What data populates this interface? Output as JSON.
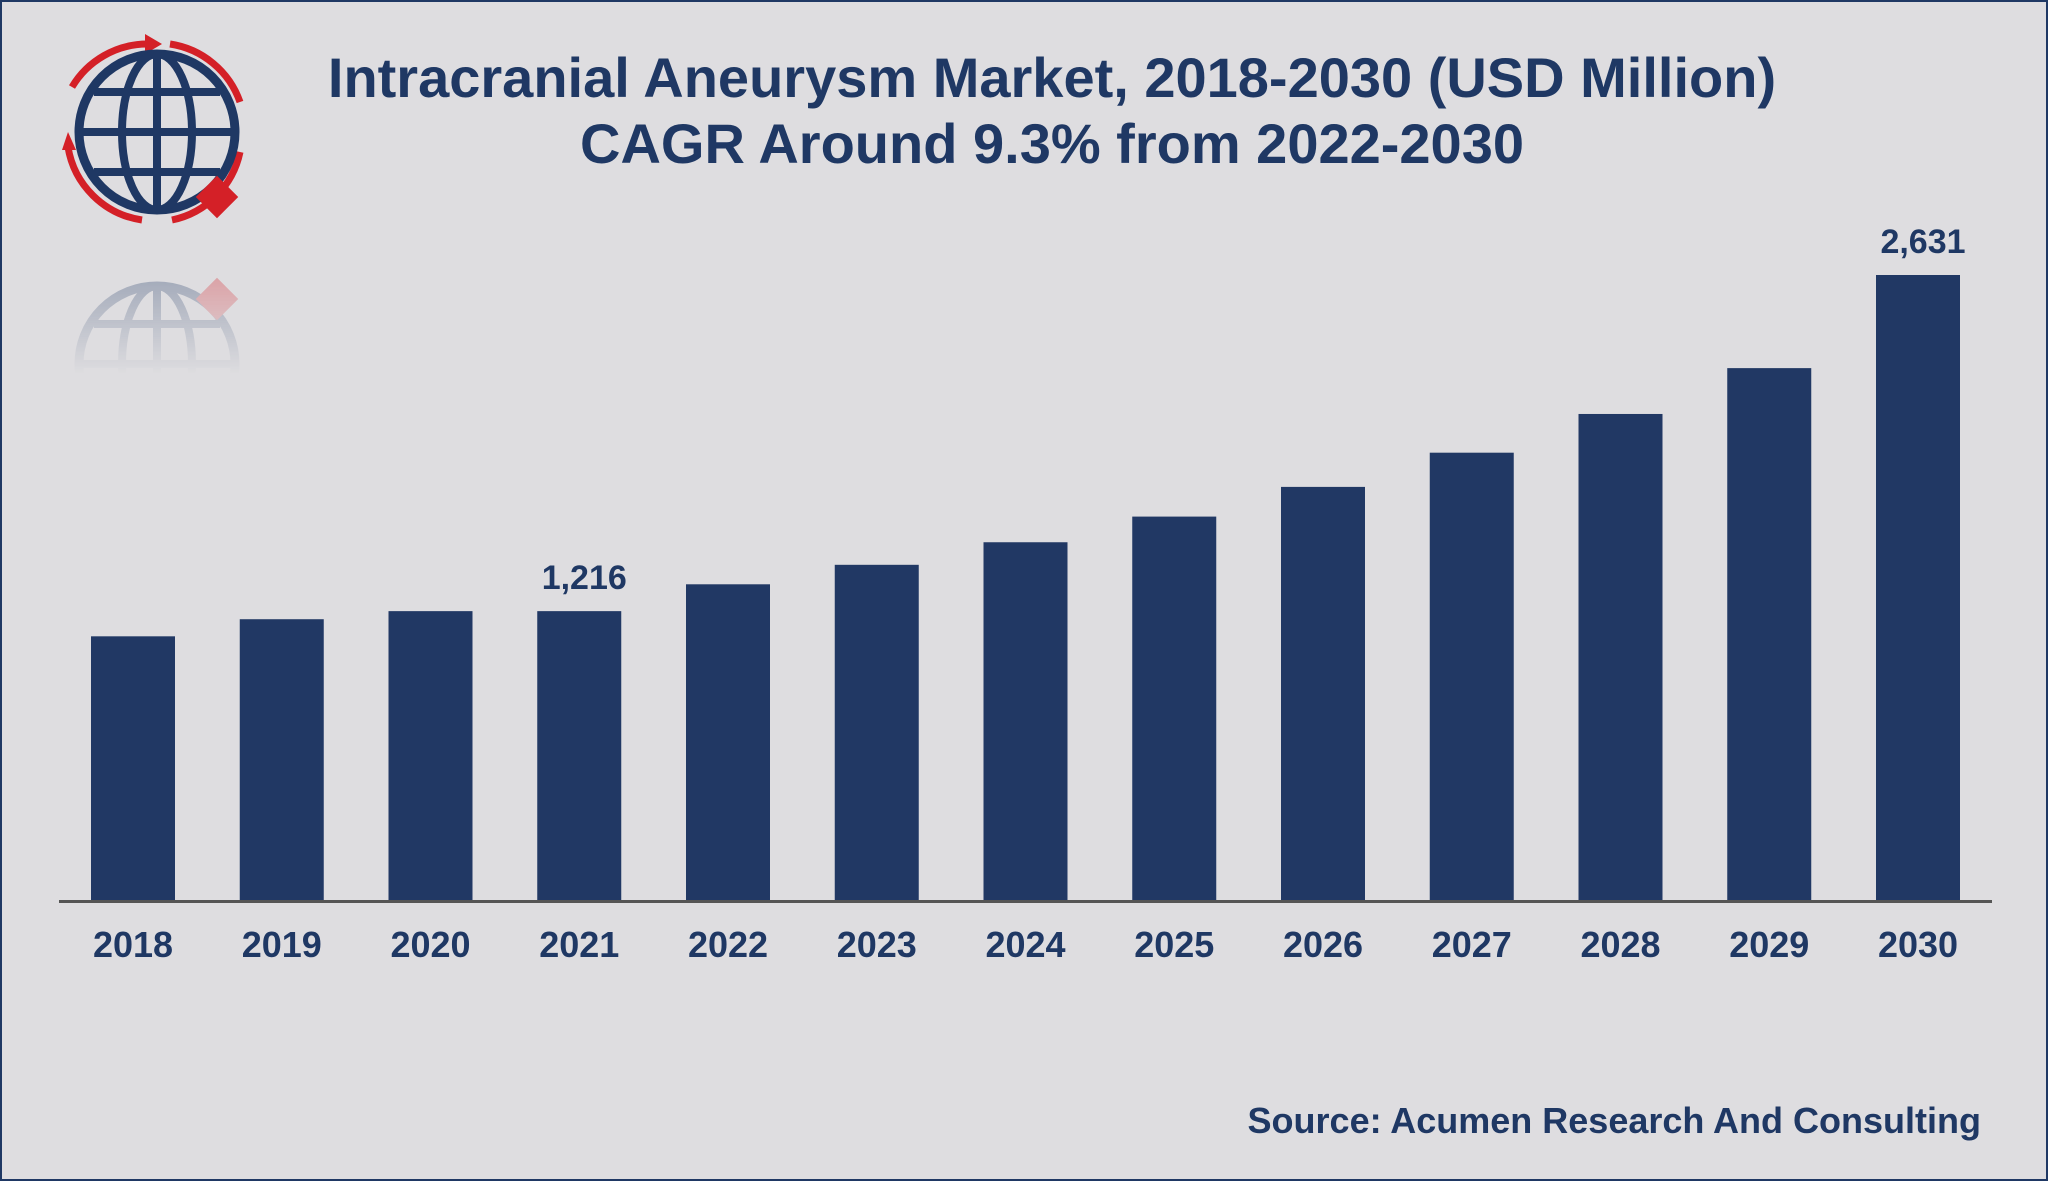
{
  "title": "Intracranial Aneurysm Market, 2018-2030 (USD Million)",
  "subtitle": "CAGR Around 9.3% from 2022-2030",
  "source": "Source: Acumen Research And Consulting",
  "colors": {
    "bar": "#213864",
    "text": "#1f3864",
    "background": "#dedde0",
    "axis": "#555555",
    "logo_red": "#d42027"
  },
  "logo": {
    "icon": "globe-logo-icon"
  },
  "chart_data": {
    "type": "bar",
    "categories": [
      "2018",
      "2019",
      "2020",
      "2021",
      "2022",
      "2023",
      "2024",
      "2025",
      "2026",
      "2027",
      "2028",
      "2029",
      "2030"
    ],
    "values": [
      1110,
      1182,
      1216,
      1216,
      1329,
      1411,
      1506,
      1614,
      1739,
      1883,
      2046,
      2239,
      2631
    ],
    "data_labels": [
      {
        "category": "2021",
        "text": "1,216"
      },
      {
        "category": "2030",
        "text": "2,631"
      }
    ],
    "xlabel": "",
    "ylabel": "",
    "ylim": [
      0,
      2631
    ],
    "grid": false,
    "legend": "none"
  }
}
